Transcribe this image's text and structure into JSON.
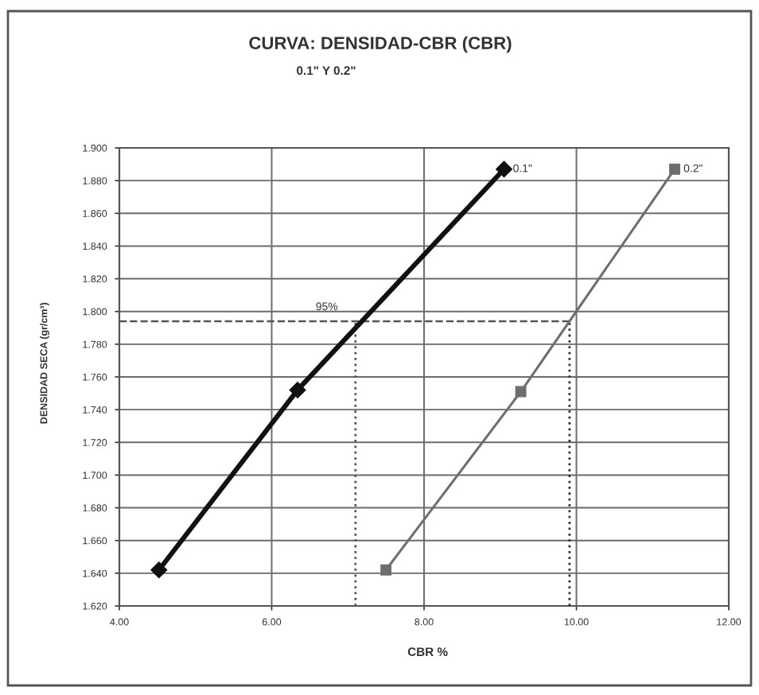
{
  "chart_data": {
    "type": "line",
    "title": "CURVA: DENSIDAD-CBR (CBR)",
    "subtitle": "0.1\" Y 0.2\"",
    "xlabel": "CBR %",
    "ylabel": "DENSIDAD SECA (gr/cm³)",
    "series": [
      {
        "name": "0.1\"",
        "color": "#111111",
        "marker": "diamond",
        "x": [
          4.52,
          6.34,
          9.05
        ],
        "values": [
          1.642,
          1.752,
          1.887
        ]
      },
      {
        "name": "0.2\"",
        "color": "#6e6e6e",
        "marker": "square",
        "x": [
          7.5,
          9.27,
          11.29
        ],
        "values": [
          1.642,
          1.751,
          1.887
        ]
      }
    ],
    "xlim": [
      4,
      12
    ],
    "xticks": [
      {
        "value": 4,
        "label": "4.00"
      },
      {
        "value": 6,
        "label": "6.00"
      },
      {
        "value": 8,
        "label": "8.00"
      },
      {
        "value": 10,
        "label": "10.00"
      },
      {
        "value": 12,
        "label": "12.00"
      }
    ],
    "ylim": [
      1.62,
      1.9
    ],
    "yticks": [
      {
        "value": 1.62,
        "label": "1.620"
      },
      {
        "value": 1.64,
        "label": "1.640"
      },
      {
        "value": 1.66,
        "label": "1.660"
      },
      {
        "value": 1.68,
        "label": "1.680"
      },
      {
        "value": 1.7,
        "label": "1.700"
      },
      {
        "value": 1.72,
        "label": "1.720"
      },
      {
        "value": 1.74,
        "label": "1.740"
      },
      {
        "value": 1.76,
        "label": "1.760"
      },
      {
        "value": 1.78,
        "label": "1.780"
      },
      {
        "value": 1.8,
        "label": "1.800"
      },
      {
        "value": 1.82,
        "label": "1.820"
      },
      {
        "value": 1.84,
        "label": "1.840"
      },
      {
        "value": 1.86,
        "label": "1.860"
      },
      {
        "value": 1.88,
        "label": "1.880"
      },
      {
        "value": 1.9,
        "label": "1.900"
      }
    ],
    "ref_lines": [
      {
        "axis": "y",
        "value": 1.794,
        "color": "#555555",
        "line_style": "dashed"
      },
      {
        "axis": "x",
        "value": 7.1,
        "color": "#555555",
        "line_style": "dotted"
      },
      {
        "axis": "x",
        "value": 9.91,
        "color": "#333333",
        "line_style": "dotted"
      }
    ],
    "annotations": [
      {
        "text": "95%",
        "x": 7.1,
        "y": 1.794
      }
    ],
    "grid": true,
    "legend": false
  }
}
